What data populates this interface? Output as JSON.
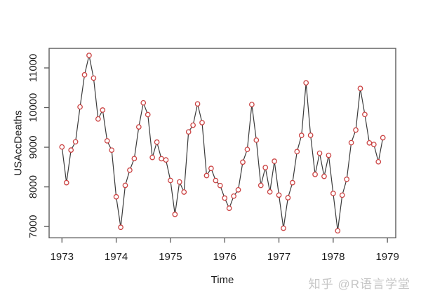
{
  "watermark": {
    "text": "知乎 @R语言学堂",
    "color": "#c6c6c6"
  },
  "chart_data": {
    "type": "line",
    "title": "",
    "xlabel": "Time",
    "ylabel": "USAccDeaths",
    "series_name": "USAccDeaths",
    "x_start_year": 1973,
    "points_per_year": 12,
    "x_ticks": [
      1973,
      1974,
      1975,
      1976,
      1977,
      1978,
      1979
    ],
    "y_ticks": [
      7000,
      8000,
      9000,
      10000,
      11000
    ],
    "xlim": [
      1972.76333,
      1979.15333
    ],
    "ylim": [
      6715,
      11494
    ],
    "grid": false,
    "legend": "none",
    "marker": "open-circle",
    "colors": {
      "line": "#3a3a3a",
      "marker": "#cb4343",
      "marker_fill": "#ffffff",
      "frame": "#5a5a5a",
      "text": "#1a1a1a"
    },
    "values": [
      9007,
      8106,
      8928,
      9137,
      10017,
      10826,
      11317,
      10744,
      9713,
      9938,
      9161,
      8927,
      7750,
      6981,
      8038,
      8422,
      8714,
      9512,
      10120,
      9823,
      8743,
      9129,
      8710,
      8680,
      8162,
      7306,
      8124,
      7870,
      9387,
      9556,
      10093,
      9620,
      8285,
      8466,
      8160,
      8034,
      7717,
      7461,
      7767,
      7925,
      8623,
      8945,
      10078,
      9179,
      8037,
      8488,
      7874,
      8647,
      7792,
      6957,
      7726,
      8106,
      8890,
      9299,
      10625,
      9302,
      8314,
      8850,
      8265,
      8796,
      7836,
      6892,
      7791,
      8192,
      9115,
      9434,
      10484,
      9827,
      9110,
      9070,
      8633,
      9240
    ]
  }
}
